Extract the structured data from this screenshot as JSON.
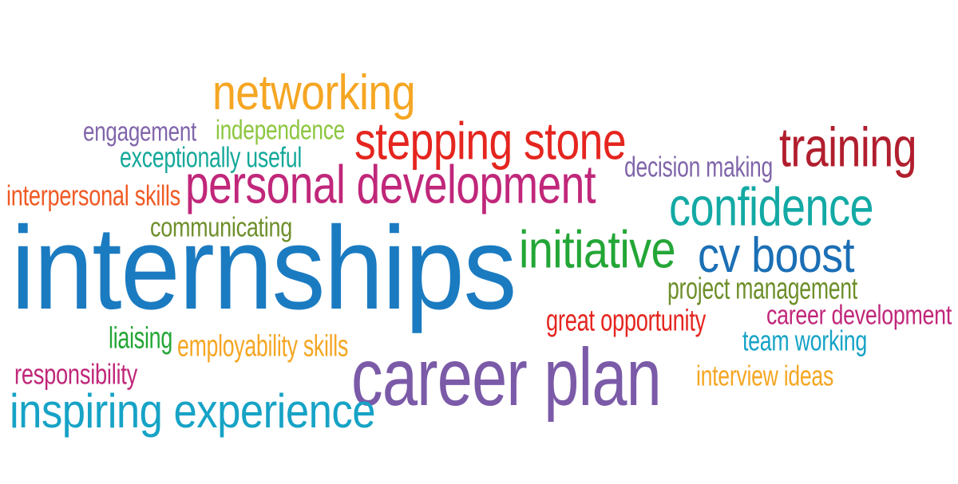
{
  "words": [
    {
      "key": "internships",
      "text": "internships",
      "color": "#1b7bc1"
    },
    {
      "key": "career_plan",
      "text": "career plan",
      "color": "#7b5aa8"
    },
    {
      "key": "personal_development",
      "text": "personal development",
      "color": "#c0277a"
    },
    {
      "key": "inspiring_experience",
      "text": "inspiring experience",
      "color": "#16a3c6"
    },
    {
      "key": "stepping_stone",
      "text": "stepping stone",
      "color": "#e5251f"
    },
    {
      "key": "networking",
      "text": "networking",
      "color": "#f5a623"
    },
    {
      "key": "confidence",
      "text": "confidence",
      "color": "#13a9a4"
    },
    {
      "key": "initiative",
      "text": "initiative",
      "color": "#23a636"
    },
    {
      "key": "cv_boost",
      "text": "cv boost",
      "color": "#1b6fb5"
    },
    {
      "key": "training",
      "text": "training",
      "color": "#b11e2e"
    },
    {
      "key": "engagement",
      "text": "engagement",
      "color": "#8065aa"
    },
    {
      "key": "independence",
      "text": "independence",
      "color": "#8cc63f"
    },
    {
      "key": "exceptionally_useful",
      "text": "exceptionally useful",
      "color": "#14a89a"
    },
    {
      "key": "interpersonal_skills",
      "text": "interpersonal skills",
      "color": "#ef5a24"
    },
    {
      "key": "communicating",
      "text": "communicating",
      "color": "#6e8f2a"
    },
    {
      "key": "decision_making",
      "text": "decision making",
      "color": "#8065aa"
    },
    {
      "key": "project_management",
      "text": "project management",
      "color": "#6e8f2a"
    },
    {
      "key": "career_development",
      "text": "career development",
      "color": "#c0277a"
    },
    {
      "key": "great_opportunity",
      "text": "great opportunity",
      "color": "#e5251f"
    },
    {
      "key": "team_working",
      "text": "team working",
      "color": "#16a3c6"
    },
    {
      "key": "liaising",
      "text": "liaising",
      "color": "#23a636"
    },
    {
      "key": "employability_skills",
      "text": "employability skills",
      "color": "#f5a623"
    },
    {
      "key": "responsibility",
      "text": "responsibility",
      "color": "#c0277a"
    },
    {
      "key": "interview_ideas",
      "text": "interview ideas",
      "color": "#f5a623"
    }
  ]
}
